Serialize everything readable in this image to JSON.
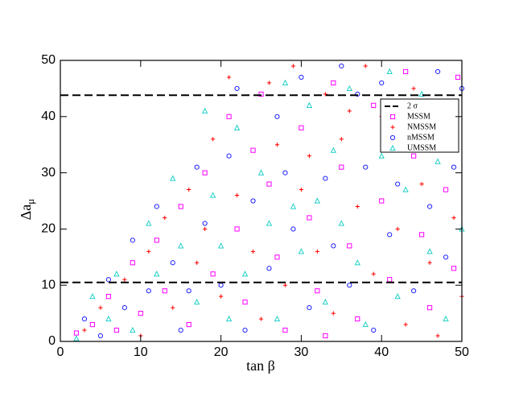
{
  "chart_data": {
    "type": "scatter",
    "xlabel": "tan β",
    "ylabel": "Δa",
    "ylabel_subscript": "μ",
    "xlim": [
      0,
      50
    ],
    "ylim": [
      0,
      50
    ],
    "xticks": [
      0,
      10,
      20,
      30,
      40,
      50
    ],
    "yticks": [
      0,
      10,
      20,
      30,
      40,
      50
    ],
    "legend": "upper right",
    "reference_lines": {
      "name": "2 σ",
      "color": "#000000",
      "values": [
        10.5,
        43.8
      ]
    },
    "series": [
      {
        "name": "MSSM",
        "color": "#ff00ff",
        "marker": "square",
        "x": [
          2,
          4,
          6,
          7,
          9,
          10,
          12,
          13,
          15,
          16,
          18,
          19,
          21,
          22,
          23,
          25,
          26,
          27,
          28,
          30,
          31,
          32,
          34,
          35,
          36,
          37,
          39,
          40,
          41,
          43,
          44,
          45,
          46,
          47,
          48,
          49,
          49.5,
          33,
          42,
          24
        ],
        "values": [
          1.5,
          3,
          8,
          2,
          14,
          5,
          18,
          9,
          24,
          3,
          30,
          12,
          40,
          20,
          7,
          44,
          28,
          15,
          2,
          38,
          22,
          9,
          46,
          31,
          17,
          4,
          42,
          25,
          11,
          48,
          33,
          19,
          6,
          40,
          27,
          13,
          47,
          1,
          36,
          34
        ]
      },
      {
        "name": "NMSSM",
        "color": "#ff0000",
        "marker": "plus",
        "x": [
          3,
          5,
          8,
          10,
          11,
          13,
          14,
          16,
          17,
          19,
          20,
          21,
          22,
          24,
          26,
          27,
          28,
          29,
          30,
          32,
          33,
          34,
          35,
          37,
          38,
          39,
          40,
          42,
          43,
          44,
          45,
          46,
          48,
          49,
          50,
          36,
          31,
          25,
          18,
          47
        ],
        "values": [
          2,
          6,
          11,
          1,
          16,
          22,
          6,
          27,
          14,
          36,
          8,
          47,
          26,
          16,
          46,
          35,
          10,
          49,
          27,
          16,
          44,
          5,
          36,
          24,
          49,
          12,
          40,
          20,
          3,
          45,
          28,
          14,
          38,
          22,
          8,
          41,
          33,
          4,
          20,
          1
        ]
      },
      {
        "name": "nMSSM",
        "color": "#1f1fff",
        "marker": "circle",
        "x": [
          3,
          5,
          6,
          8,
          9,
          11,
          12,
          14,
          15,
          17,
          18,
          20,
          21,
          22,
          23,
          24,
          26,
          27,
          29,
          30,
          31,
          33,
          34,
          35,
          36,
          38,
          39,
          40,
          41,
          42,
          44,
          45,
          46,
          47,
          48,
          49,
          50,
          37,
          28,
          16
        ],
        "values": [
          4,
          1,
          11,
          6,
          18,
          9,
          24,
          14,
          2,
          31,
          21,
          10,
          33,
          45,
          2,
          25,
          13,
          40,
          20,
          47,
          6,
          29,
          17,
          49,
          10,
          31,
          2,
          46,
          19,
          28,
          9,
          38,
          24,
          48,
          15,
          31,
          45,
          44,
          30,
          9
        ]
      },
      {
        "name": "UMSSM",
        "color": "#20d0c8",
        "marker": "triangle",
        "x": [
          2,
          4,
          6,
          7,
          9,
          11,
          12,
          14,
          15,
          17,
          18,
          19,
          20,
          22,
          23,
          25,
          26,
          27,
          28,
          30,
          31,
          32,
          33,
          35,
          36,
          37,
          38,
          40,
          41,
          42,
          43,
          45,
          46,
          47,
          48,
          49,
          50,
          34,
          29,
          21
        ],
        "values": [
          0.5,
          8,
          4,
          12,
          2,
          21,
          12,
          29,
          17,
          7,
          41,
          26,
          17,
          38,
          12,
          30,
          21,
          4,
          46,
          16,
          42,
          25,
          7,
          21,
          45,
          14,
          3,
          33,
          48,
          8,
          27,
          44,
          16,
          32,
          4,
          41,
          20,
          34,
          24,
          4
        ]
      }
    ]
  }
}
